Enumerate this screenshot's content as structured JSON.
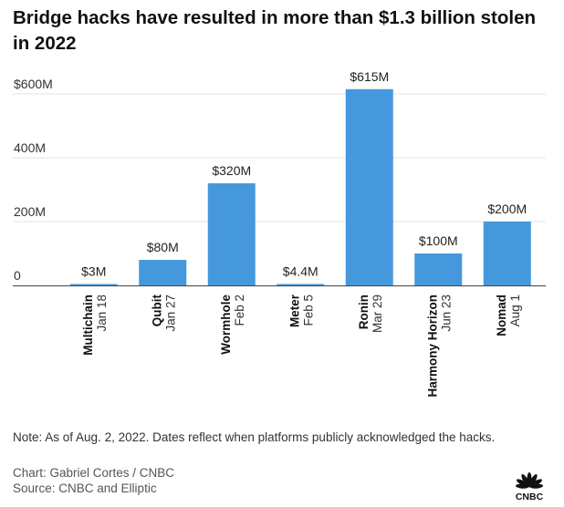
{
  "title": "Bridge hacks have resulted in more than $1.3 billion stolen in 2022",
  "chart_data": {
    "type": "bar",
    "title": "Bridge hacks have resulted in more than $1.3 billion stolen in 2022",
    "xlabel": "",
    "ylabel": "",
    "ylim": [
      0,
      600
    ],
    "grid": true,
    "y_ticks": [
      {
        "value": 0,
        "label": "0"
      },
      {
        "value": 200,
        "label": "200M"
      },
      {
        "value": 400,
        "label": "400M"
      },
      {
        "value": 600,
        "label": "$600M"
      }
    ],
    "categories": [
      "Multichain",
      "Qubit",
      "Wormhole",
      "Meter",
      "Ronin",
      "Harmony Horizon",
      "Nomad"
    ],
    "dates": [
      "Jan 18",
      "Jan 27",
      "Feb 2",
      "Feb 5",
      "Mar 29",
      "Jun 23",
      "Aug 1"
    ],
    "values": [
      3,
      80,
      320,
      4.4,
      615,
      100,
      200
    ],
    "value_labels": [
      "$3M",
      "$80M",
      "$320M",
      "$4.4M",
      "$615M",
      "$100M",
      "$200M"
    ],
    "bar_color": "#4598dc",
    "grid_color": "#e3e3e3",
    "axis_color": "#444444"
  },
  "note": "Note: As of Aug. 2, 2022. Dates reflect when platforms publicly acknowledged the hacks.",
  "credit_chart": "Chart: Gabriel Cortes / CNBC",
  "credit_source": "Source: CNBC and Elliptic",
  "logo_text": "CNBC",
  "logo_icon": "nbc-peacock-icon"
}
